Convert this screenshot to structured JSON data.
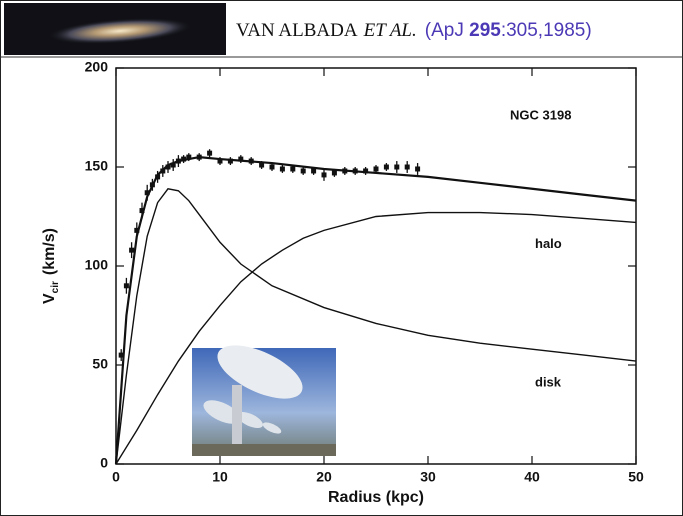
{
  "header": {
    "authors": "VAN ALBADA",
    "etal": "ET AL.",
    "ref_open": "(ApJ ",
    "volume": "295",
    "ref_rest": ":305,1985)"
  },
  "chart_data": {
    "type": "line",
    "xlabel": "Radius (kpc)",
    "ylabel_main": "V",
    "ylabel_sub": "cir",
    "ylabel_unit": "(km/s)",
    "annotation": "NGC 3198",
    "xlim": [
      0,
      50
    ],
    "xticks": [
      0,
      10,
      20,
      30,
      40,
      50
    ],
    "ylim": [
      0,
      200
    ],
    "yticks": [
      0,
      50,
      100,
      150,
      200
    ],
    "color": "#111111",
    "series": [
      {
        "x": [
          0,
          1,
          2,
          3,
          4,
          5,
          6,
          8,
          10,
          15,
          20,
          25,
          30,
          35,
          40,
          45,
          50
        ],
        "values": [
          0,
          75,
          115,
          135,
          146,
          151,
          153,
          155,
          154,
          152,
          149,
          147,
          145,
          142,
          139,
          136,
          133
        ]
      },
      {
        "name": "halo",
        "x": [
          0,
          2,
          4,
          6,
          8,
          10,
          12,
          14,
          16,
          18,
          20,
          25,
          30,
          35,
          40,
          45,
          50
        ],
        "values": [
          0,
          17,
          35,
          52,
          67,
          80,
          92,
          101,
          108,
          114,
          118,
          125,
          127,
          127,
          126,
          124,
          122
        ]
      },
      {
        "name": "disk",
        "x": [
          0,
          1,
          2,
          3,
          4,
          5,
          6,
          7,
          8,
          10,
          12,
          15,
          20,
          25,
          30,
          35,
          40,
          45,
          50
        ],
        "values": [
          0,
          45,
          85,
          115,
          132,
          139,
          138,
          133,
          126,
          112,
          101,
          90,
          79,
          71,
          65,
          61,
          58,
          55,
          52
        ]
      }
    ],
    "observations": {
      "x": [
        0.5,
        1,
        1.5,
        2,
        2.5,
        3,
        3.5,
        4,
        4.5,
        5,
        5.5,
        6,
        6.5,
        7,
        8,
        9,
        10,
        11,
        12,
        13,
        14,
        15,
        16,
        17,
        18,
        19,
        20,
        21,
        22,
        23,
        24,
        25,
        26,
        27,
        28,
        29
      ],
      "values": [
        55,
        90,
        108,
        118,
        128,
        137,
        141,
        145,
        148,
        150,
        151,
        153,
        154,
        155,
        155,
        157,
        153,
        153,
        154,
        153,
        151,
        150,
        149,
        149,
        148,
        148,
        146,
        147,
        148,
        148,
        148,
        149,
        150,
        150,
        150,
        149
      ],
      "errors": [
        3,
        4,
        4,
        4,
        4,
        4,
        3,
        3,
        3,
        3,
        3,
        3,
        2,
        2,
        2,
        2,
        2,
        2,
        2,
        2,
        2,
        2,
        2,
        2,
        2,
        2,
        3,
        2,
        2,
        2,
        2,
        2,
        2,
        3,
        3,
        3
      ]
    }
  }
}
